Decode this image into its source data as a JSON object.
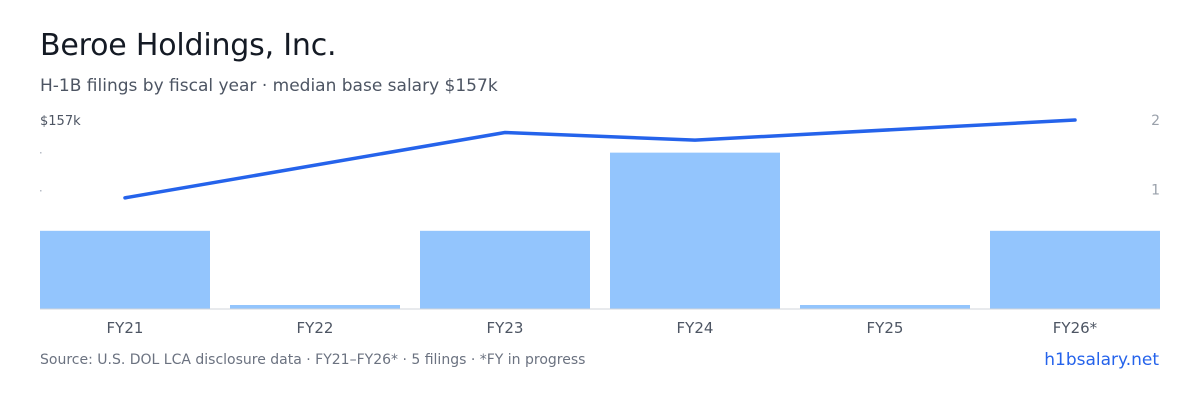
{
  "header": {
    "title": "Beroe Holdings, Inc.",
    "subtitle": "H-1B filings by fiscal year · median base salary $157k"
  },
  "footer": {
    "source": "Source: U.S. DOL LCA disclosure data · FY21–FY26* · 5 filings · *FY in progress",
    "brand": "h1bsalary.net"
  },
  "colors": {
    "bar": "#93c5fd",
    "line": "#2563eb",
    "axis_text": "#4d5563",
    "right_axis_text": "#9aa1ab",
    "baseline": "#d1d5db"
  },
  "chart_data": {
    "type": "bar",
    "categories": [
      "FY21",
      "FY22",
      "FY23",
      "FY24",
      "FY25",
      "FY26*"
    ],
    "series": [
      {
        "type": "bar",
        "axis": "left",
        "values": [
          1,
          0,
          1,
          2,
          0,
          1
        ]
      },
      {
        "type": "line",
        "axis": "right",
        "values": [
          0.88,
          null,
          1.82,
          1.71,
          null,
          2.0
        ]
      }
    ],
    "left_axis": {
      "tick_label": "$157k"
    },
    "right_axis": {
      "ylim": [
        0,
        2
      ],
      "ticks": [
        1,
        2
      ]
    },
    "bar_ylim": [
      0,
      2.2
    ],
    "grid": false,
    "legend": "none"
  }
}
